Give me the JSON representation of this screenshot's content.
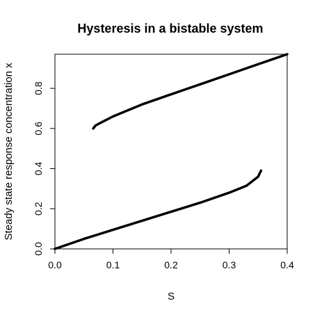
{
  "chart_data": {
    "type": "line",
    "title": "Hysteresis in a bistable system",
    "xlabel": "S",
    "ylabel": "Steady state response concentration x",
    "xlim": [
      0,
      0.4
    ],
    "ylim": [
      0,
      0.97
    ],
    "x_ticks": [
      0.0,
      0.1,
      0.2,
      0.3,
      0.4
    ],
    "x_tick_labels": [
      "0.0",
      "0.1",
      "0.2",
      "0.3",
      "0.4"
    ],
    "y_ticks": [
      0.0,
      0.2,
      0.4,
      0.6,
      0.8
    ],
    "y_tick_labels": [
      "0.0",
      "0.2",
      "0.4",
      "0.6",
      "0.8"
    ],
    "grid": false,
    "legend": "none",
    "line_color": "#000000",
    "series": [
      {
        "x": [
          0.0,
          0.05,
          0.1,
          0.15,
          0.2,
          0.25,
          0.3,
          0.33,
          0.35,
          0.355
        ],
        "y": [
          0.0,
          0.05,
          0.095,
          0.14,
          0.185,
          0.23,
          0.28,
          0.315,
          0.36,
          0.39
        ]
      },
      {
        "x": [
          0.066,
          0.07,
          0.08,
          0.1,
          0.15,
          0.2,
          0.25,
          0.3,
          0.35,
          0.4
        ],
        "y": [
          0.6,
          0.615,
          0.63,
          0.66,
          0.72,
          0.77,
          0.82,
          0.87,
          0.92,
          0.97
        ]
      }
    ]
  }
}
